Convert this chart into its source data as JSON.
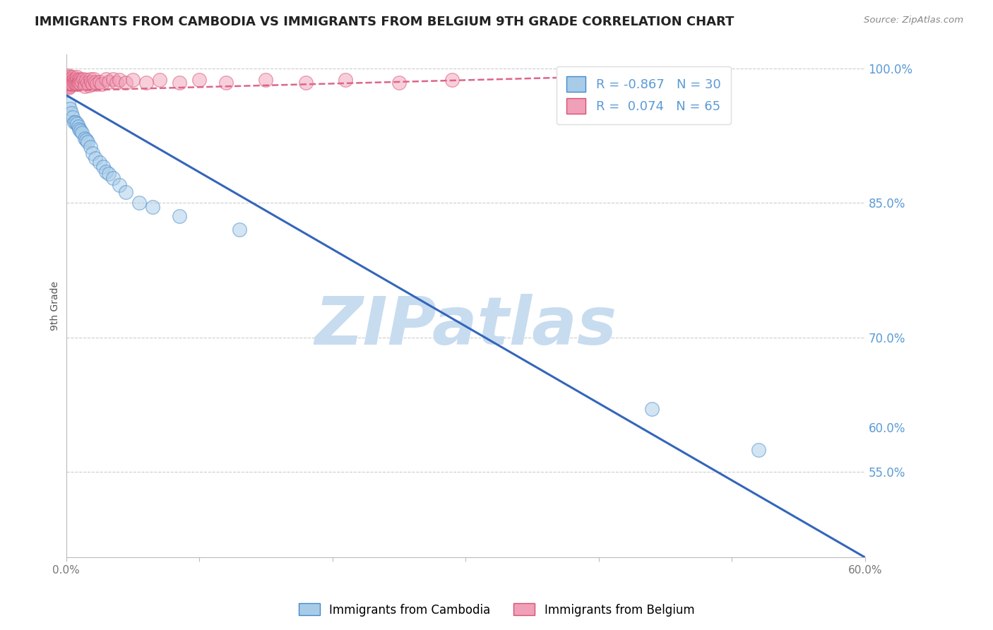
{
  "title": "IMMIGRANTS FROM CAMBODIA VS IMMIGRANTS FROM BELGIUM 9TH GRADE CORRELATION CHART",
  "source": "Source: ZipAtlas.com",
  "ylabel": "9th Grade",
  "xlim": [
    0.0,
    0.6
  ],
  "ylim": [
    0.455,
    1.015
  ],
  "right_ytick_values": [
    1.0,
    0.85,
    0.7,
    0.55,
    0.6
  ],
  "right_ytick_labels": [
    "100.0%",
    "85.0%",
    "70.0%",
    "55.0%",
    "60.0%"
  ],
  "grid_yticks": [
    1.0,
    0.85,
    0.7,
    0.55
  ],
  "xticks": [
    0.0,
    0.1,
    0.2,
    0.3,
    0.4,
    0.5,
    0.6
  ],
  "xtick_labels": [
    "0.0%",
    "",
    "",
    "",
    "",
    "",
    "60.0%"
  ],
  "legend_blue_r": "-0.867",
  "legend_blue_n": "30",
  "legend_pink_r": "0.074",
  "legend_pink_n": "65",
  "legend_blue_label": "Immigrants from Cambodia",
  "legend_pink_label": "Immigrants from Belgium",
  "blue_color": "#A8CCE8",
  "pink_color": "#F0A0B8",
  "blue_edge_color": "#4488CC",
  "pink_edge_color": "#D85070",
  "blue_line_color": "#3366BB",
  "pink_line_color": "#DD6688",
  "watermark": "ZIPatlas",
  "watermark_color": "#C8DCF0",
  "blue_scatter_x": [
    0.002,
    0.003,
    0.004,
    0.005,
    0.006,
    0.007,
    0.008,
    0.009,
    0.01,
    0.011,
    0.012,
    0.014,
    0.015,
    0.016,
    0.018,
    0.02,
    0.022,
    0.025,
    0.028,
    0.03,
    0.032,
    0.035,
    0.04,
    0.045,
    0.055,
    0.065,
    0.085,
    0.13,
    0.44,
    0.52
  ],
  "blue_scatter_y": [
    0.96,
    0.955,
    0.95,
    0.945,
    0.94,
    0.94,
    0.938,
    0.935,
    0.932,
    0.93,
    0.928,
    0.922,
    0.92,
    0.918,
    0.912,
    0.905,
    0.9,
    0.895,
    0.89,
    0.885,
    0.882,
    0.878,
    0.87,
    0.862,
    0.85,
    0.845,
    0.835,
    0.82,
    0.62,
    0.575
  ],
  "pink_scatter_x": [
    0.001,
    0.001,
    0.001,
    0.001,
    0.001,
    0.002,
    0.002,
    0.002,
    0.002,
    0.002,
    0.003,
    0.003,
    0.003,
    0.003,
    0.004,
    0.004,
    0.004,
    0.005,
    0.005,
    0.005,
    0.006,
    0.006,
    0.007,
    0.007,
    0.008,
    0.008,
    0.008,
    0.009,
    0.009,
    0.01,
    0.01,
    0.011,
    0.011,
    0.012,
    0.013,
    0.014,
    0.014,
    0.015,
    0.016,
    0.017,
    0.018,
    0.019,
    0.02,
    0.021,
    0.022,
    0.023,
    0.025,
    0.027,
    0.03,
    0.032,
    0.035,
    0.038,
    0.04,
    0.045,
    0.05,
    0.06,
    0.07,
    0.085,
    0.1,
    0.12,
    0.15,
    0.18,
    0.21,
    0.25,
    0.29
  ],
  "pink_scatter_y": [
    0.99,
    0.988,
    0.985,
    0.983,
    0.98,
    0.992,
    0.988,
    0.985,
    0.982,
    0.978,
    0.99,
    0.987,
    0.984,
    0.98,
    0.988,
    0.985,
    0.982,
    0.99,
    0.986,
    0.982,
    0.988,
    0.984,
    0.987,
    0.983,
    0.99,
    0.986,
    0.982,
    0.985,
    0.982,
    0.988,
    0.984,
    0.987,
    0.983,
    0.985,
    0.988,
    0.984,
    0.98,
    0.987,
    0.984,
    0.981,
    0.988,
    0.985,
    0.982,
    0.988,
    0.985,
    0.982,
    0.985,
    0.982,
    0.988,
    0.985,
    0.988,
    0.984,
    0.987,
    0.984,
    0.987,
    0.984,
    0.987,
    0.984,
    0.987,
    0.984,
    0.987,
    0.984,
    0.987,
    0.984,
    0.987
  ],
  "blue_trend_x": [
    0.0,
    0.6
  ],
  "blue_trend_y": [
    0.97,
    0.455
  ],
  "pink_trend_x": [
    0.0,
    0.385
  ],
  "pink_trend_y": [
    0.975,
    0.99
  ],
  "grid_color": "#CCCCCC",
  "background_color": "#FFFFFF"
}
